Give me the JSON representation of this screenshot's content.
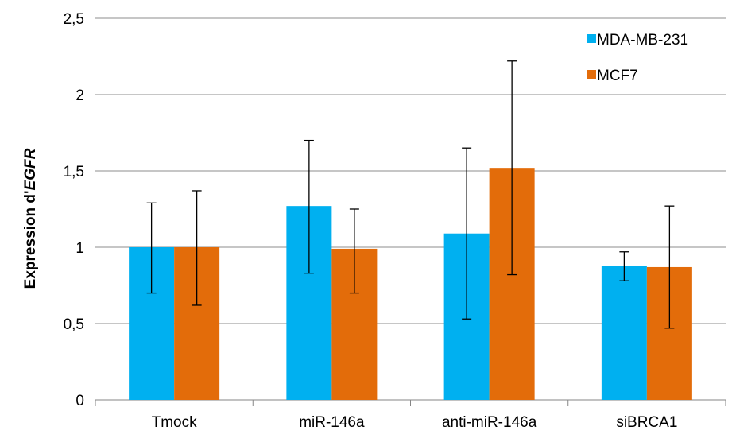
{
  "chart_data": {
    "type": "bar",
    "categories": [
      "Tmock",
      "miR-146a",
      "anti-miR-146a",
      "siBRCA1"
    ],
    "series": [
      {
        "name": "MDA-MB-231",
        "color": "#00B0F0",
        "values": [
          1.0,
          1.27,
          1.09,
          0.88
        ],
        "error_low": [
          0.7,
          0.83,
          0.53,
          0.78
        ],
        "error_high": [
          1.29,
          1.7,
          1.65,
          0.97
        ]
      },
      {
        "name": "MCF7",
        "color": "#E36C0A",
        "values": [
          1.0,
          0.99,
          1.52,
          0.87
        ],
        "error_low": [
          0.62,
          0.7,
          0.82,
          0.47
        ],
        "error_high": [
          1.37,
          1.25,
          2.22,
          1.27
        ]
      }
    ],
    "ylabel": {
      "prefix": "Expression d'",
      "italic": "EGFR"
    },
    "ylim": [
      0,
      2.5
    ],
    "yticks": [
      {
        "value": 0,
        "label": "0"
      },
      {
        "value": 0.5,
        "label": "0,5"
      },
      {
        "value": 1,
        "label": "1"
      },
      {
        "value": 1.5,
        "label": "1,5"
      },
      {
        "value": 2,
        "label": "2"
      },
      {
        "value": 2.5,
        "label": "2,5"
      }
    ],
    "grid": true,
    "legend_position": "top-right"
  }
}
